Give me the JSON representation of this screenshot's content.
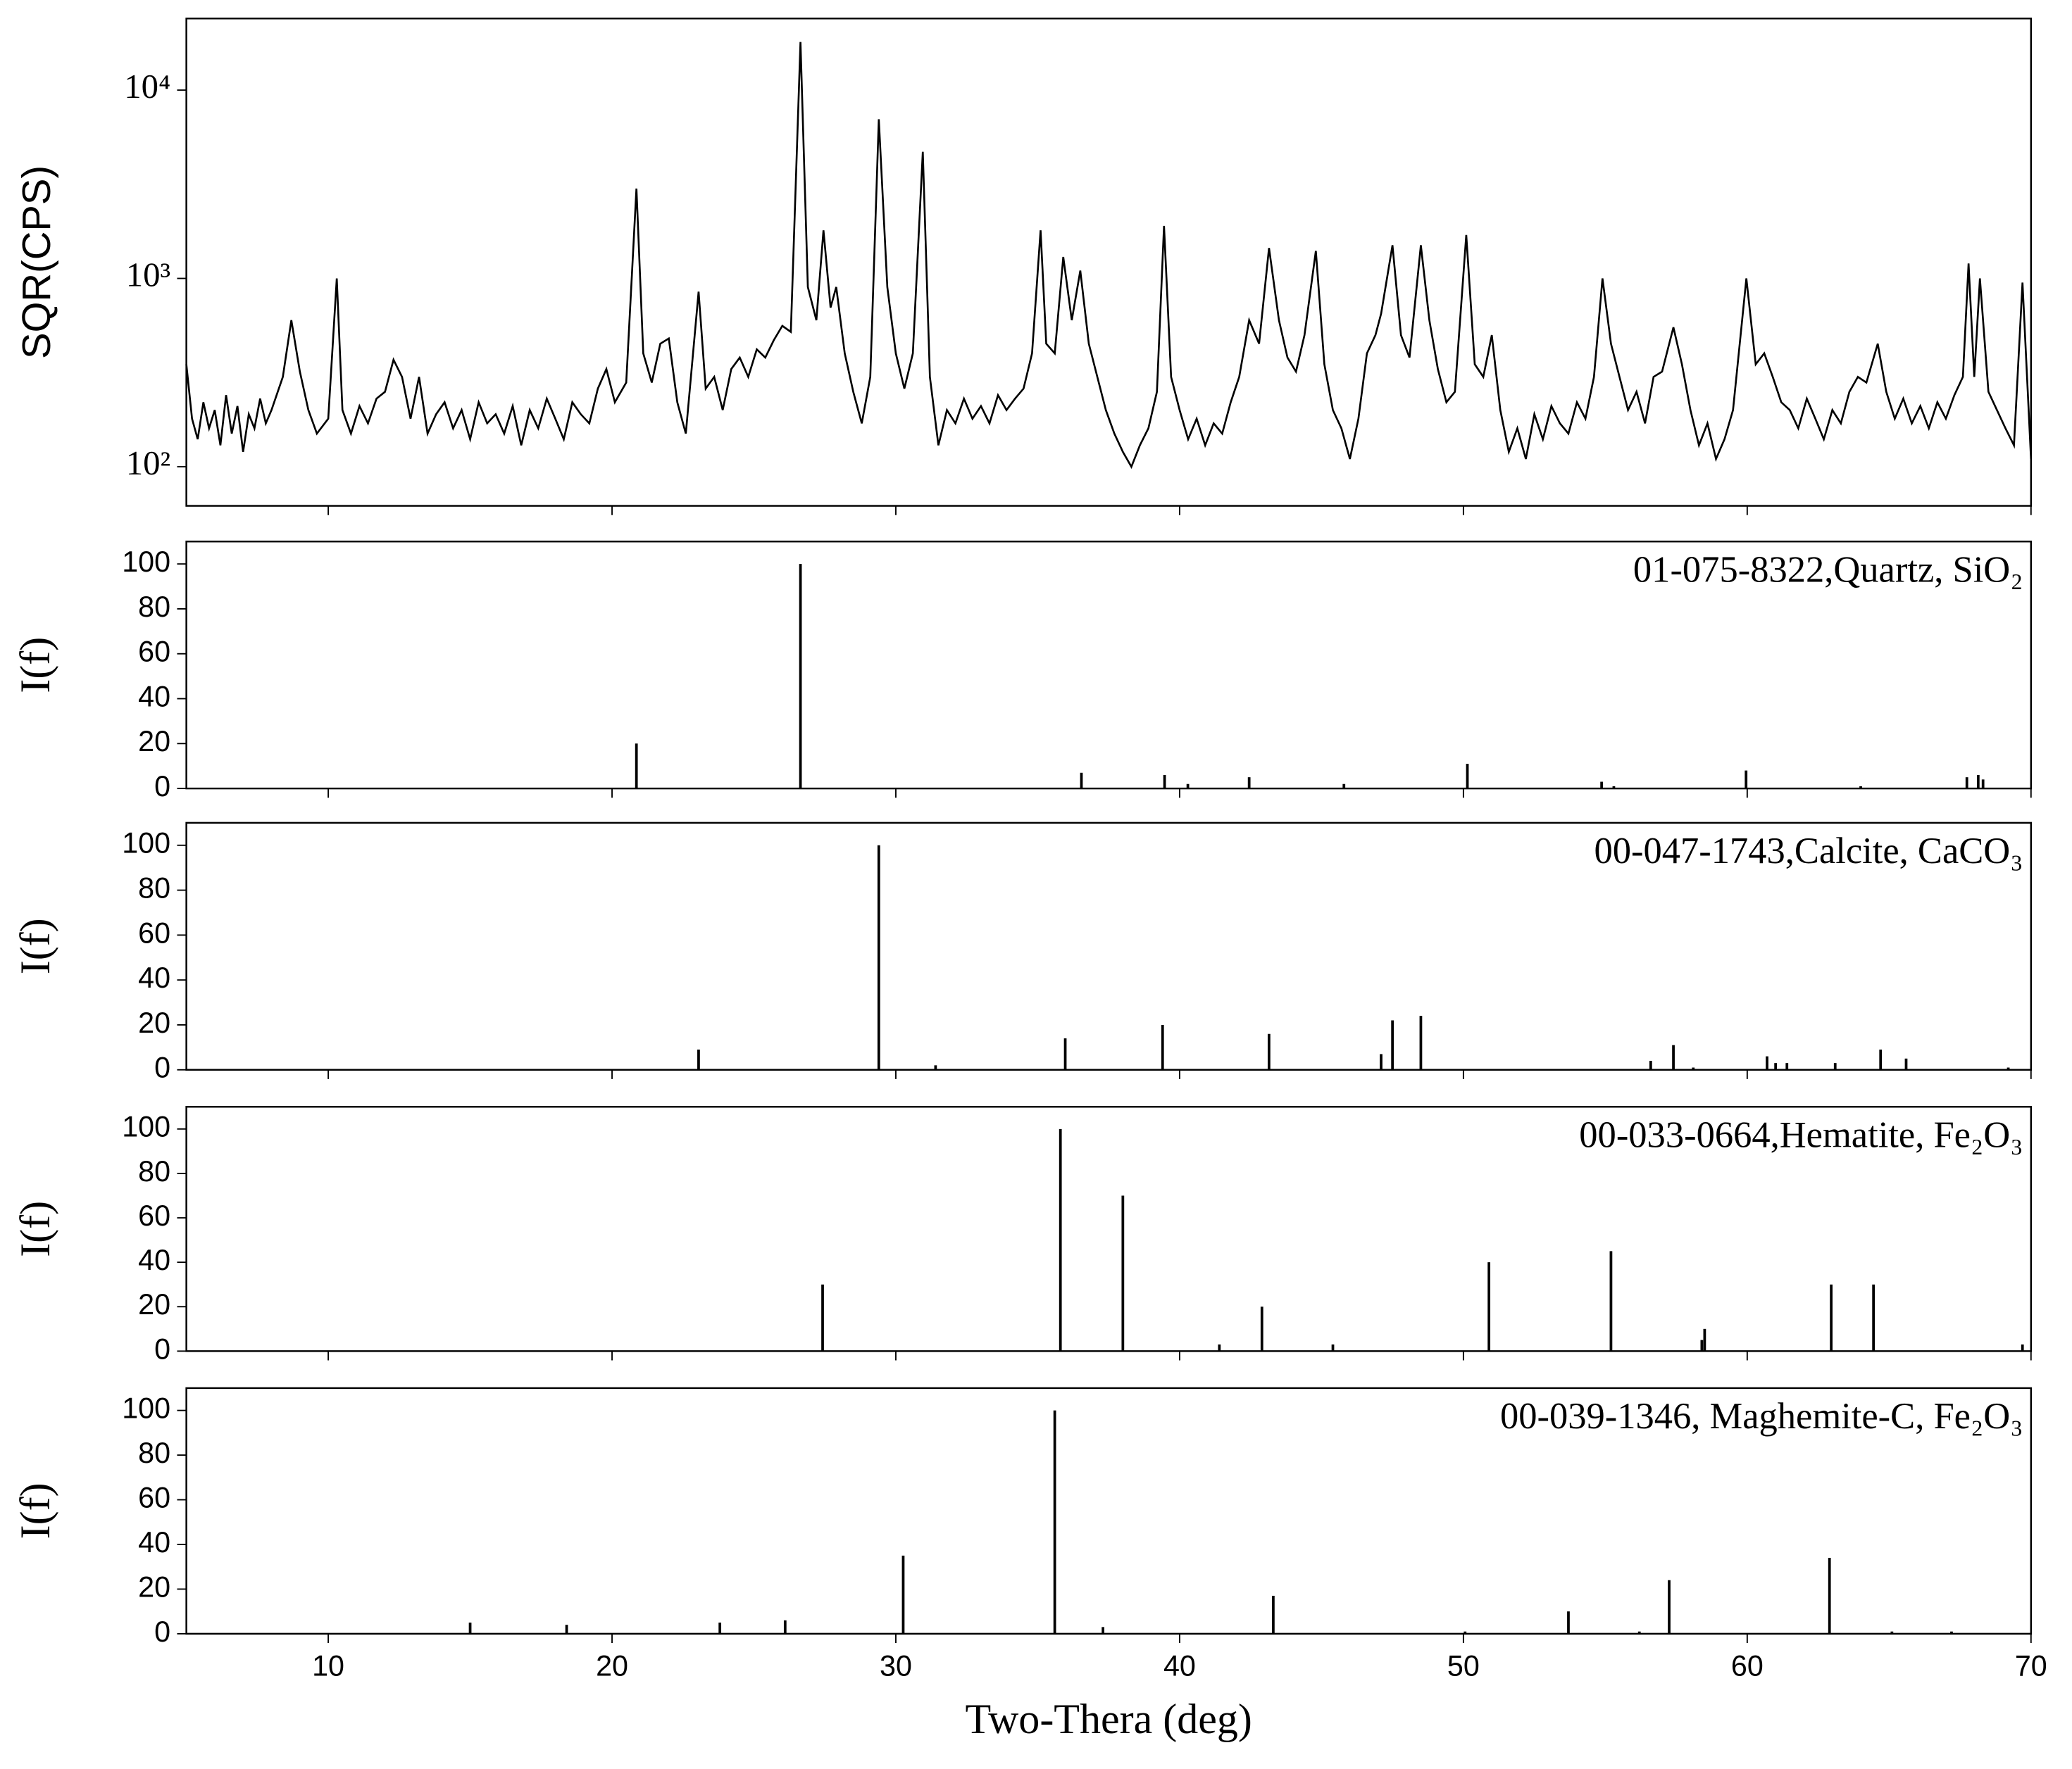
{
  "chart_data": [
    {
      "type": "line",
      "ylabel": "SQR(CPS)",
      "log_scale": true,
      "color": "#000000",
      "xlim": [
        5,
        70
      ],
      "xticks": [
        10,
        20,
        30,
        40,
        50,
        60,
        70
      ],
      "ylim": [
        62,
        24000
      ],
      "yticks": [
        {
          "value": 100,
          "label": "10²"
        },
        {
          "value": 1000,
          "label": "10³"
        },
        {
          "value": 10000,
          "label": "10⁴"
        }
      ],
      "x": [
        5,
        5.2,
        5.4,
        5.6,
        5.8,
        6,
        6.2,
        6.4,
        6.6,
        6.8,
        7,
        7.2,
        7.4,
        7.6,
        7.8,
        8,
        8.4,
        8.7,
        9.0,
        9.3,
        9.6,
        10.0,
        10.3,
        10.5,
        10.8,
        11.1,
        11.4,
        11.7,
        12.0,
        12.3,
        12.6,
        12.9,
        13.2,
        13.5,
        13.8,
        14.1,
        14.4,
        14.7,
        15.0,
        15.3,
        15.6,
        15.9,
        16.2,
        16.5,
        16.8,
        17.1,
        17.4,
        17.7,
        18.0,
        18.3,
        18.6,
        18.9,
        19.2,
        19.5,
        19.8,
        20.1,
        20.5,
        20.86,
        21.1,
        21.4,
        21.7,
        22.0,
        22.3,
        22.6,
        23.05,
        23.3,
        23.6,
        23.9,
        24.2,
        24.5,
        24.8,
        25.1,
        25.4,
        25.7,
        26.0,
        26.3,
        26.64,
        26.9,
        27.2,
        27.45,
        27.7,
        27.9,
        28.2,
        28.5,
        28.8,
        29.1,
        29.4,
        29.7,
        30.0,
        30.3,
        30.6,
        30.95,
        31.2,
        31.5,
        31.8,
        32.1,
        32.4,
        32.7,
        33.0,
        33.3,
        33.6,
        33.9,
        34.2,
        34.5,
        34.8,
        35.1,
        35.3,
        35.6,
        35.9,
        36.2,
        36.5,
        36.8,
        37.1,
        37.4,
        37.7,
        38.0,
        38.3,
        38.6,
        38.9,
        39.2,
        39.45,
        39.7,
        40.0,
        40.3,
        40.6,
        40.9,
        41.2,
        41.5,
        41.8,
        42.1,
        42.45,
        42.8,
        43.15,
        43.5,
        43.8,
        44.1,
        44.4,
        44.8,
        45.1,
        45.4,
        45.7,
        46.0,
        46.3,
        46.6,
        46.9,
        47.1,
        47.5,
        47.8,
        48.1,
        48.5,
        48.8,
        49.1,
        49.4,
        49.7,
        50.1,
        50.4,
        50.7,
        51.0,
        51.3,
        51.6,
        51.9,
        52.2,
        52.5,
        52.8,
        53.1,
        53.4,
        53.7,
        54.0,
        54.3,
        54.6,
        54.9,
        55.2,
        55.5,
        55.8,
        56.1,
        56.4,
        56.7,
        57.0,
        57.4,
        57.7,
        58.0,
        58.3,
        58.6,
        58.9,
        59.2,
        59.5,
        59.97,
        60.3,
        60.6,
        60.9,
        61.2,
        61.5,
        61.8,
        62.1,
        62.4,
        62.7,
        63.0,
        63.3,
        63.6,
        63.9,
        64.2,
        64.6,
        64.9,
        65.2,
        65.5,
        65.8,
        66.1,
        66.4,
        66.7,
        67.0,
        67.3,
        67.6,
        67.8,
        68.0,
        68.2,
        68.5,
        68.8,
        69.1,
        69.4,
        69.7,
        70.0
      ],
      "values": [
        350,
        180,
        140,
        220,
        160,
        200,
        130,
        240,
        150,
        210,
        120,
        190,
        160,
        230,
        170,
        200,
        300,
        600,
        320,
        200,
        150,
        180,
        1000,
        200,
        150,
        210,
        170,
        230,
        250,
        370,
        300,
        180,
        300,
        150,
        190,
        220,
        160,
        200,
        140,
        220,
        170,
        190,
        150,
        210,
        130,
        200,
        160,
        230,
        180,
        140,
        220,
        190,
        170,
        260,
        330,
        220,
        280,
        3000,
        400,
        280,
        450,
        480,
        220,
        150,
        850,
        260,
        300,
        200,
        330,
        380,
        300,
        420,
        380,
        470,
        560,
        520,
        18000,
        900,
        600,
        1800,
        700,
        900,
        400,
        250,
        170,
        300,
        7000,
        900,
        400,
        260,
        400,
        4700,
        300,
        130,
        200,
        170,
        230,
        180,
        210,
        170,
        240,
        200,
        230,
        260,
        400,
        1800,
        450,
        400,
        1300,
        600,
        1100,
        450,
        300,
        200,
        150,
        120,
        100,
        130,
        160,
        250,
        1900,
        300,
        200,
        140,
        180,
        130,
        170,
        150,
        220,
        300,
        600,
        450,
        1450,
        600,
        380,
        320,
        500,
        1400,
        350,
        200,
        160,
        110,
        180,
        400,
        500,
        650,
        1500,
        500,
        380,
        1500,
        600,
        330,
        220,
        250,
        1700,
        350,
        300,
        500,
        200,
        120,
        160,
        110,
        190,
        140,
        210,
        170,
        150,
        220,
        180,
        300,
        1000,
        450,
        300,
        200,
        250,
        170,
        300,
        320,
        550,
        350,
        200,
        130,
        170,
        110,
        140,
        200,
        1000,
        350,
        400,
        300,
        220,
        200,
        160,
        230,
        180,
        140,
        200,
        170,
        250,
        300,
        280,
        450,
        250,
        180,
        230,
        170,
        210,
        160,
        220,
        180,
        240,
        300,
        1200,
        300,
        1000,
        250,
        200,
        160,
        130,
        950,
        110
      ]
    },
    {
      "type": "stem",
      "ylabel": "I(f)",
      "label": "01-075-8322,Quartz, SiO₂",
      "color": "#000000",
      "xlim": [
        5,
        70
      ],
      "xticks": [
        10,
        20,
        30,
        40,
        50,
        60,
        70
      ],
      "ylim": [
        0,
        110
      ],
      "yticks": [
        0,
        20,
        40,
        60,
        80,
        100
      ],
      "x": [
        20.86,
        26.64,
        36.54,
        39.47,
        40.29,
        42.45,
        45.79,
        50.14,
        54.87,
        55.3,
        59.96,
        64.0,
        67.74,
        68.14,
        68.31
      ],
      "values": [
        20,
        100,
        7,
        6,
        2,
        5,
        2,
        11,
        3,
        1,
        8,
        1,
        5,
        6,
        4
      ]
    },
    {
      "type": "stem",
      "ylabel": "I(f)",
      "label": "00-047-1743,Calcite, CaCO₃",
      "color": "#000000",
      "xlim": [
        5,
        70
      ],
      "xticks": [
        10,
        20,
        30,
        40,
        50,
        60,
        70
      ],
      "ylim": [
        0,
        110
      ],
      "yticks": [
        0,
        20,
        40,
        60,
        80,
        100
      ],
      "x": [
        23.05,
        29.4,
        31.4,
        35.97,
        39.4,
        43.15,
        47.1,
        47.5,
        48.5,
        56.6,
        57.4,
        58.1,
        60.7,
        61.0,
        61.4,
        63.1,
        64.7,
        65.6,
        69.2
      ],
      "values": [
        9,
        100,
        2,
        14,
        20,
        16,
        7,
        22,
        24,
        4,
        11,
        1,
        6,
        3,
        3,
        3,
        9,
        5,
        1
      ]
    },
    {
      "type": "stem",
      "ylabel": "I(f)",
      "label": "00-033-0664,Hematite, Fe₂O₃",
      "color": "#000000",
      "xlim": [
        5,
        70
      ],
      "xticks": [
        10,
        20,
        30,
        40,
        50,
        60,
        70
      ],
      "ylim": [
        0,
        110
      ],
      "yticks": [
        0,
        20,
        40,
        60,
        80,
        100
      ],
      "x": [
        27.42,
        35.8,
        38.0,
        41.4,
        42.9,
        45.4,
        50.9,
        55.2,
        58.4,
        58.5,
        62.96,
        64.45,
        69.7
      ],
      "values": [
        30,
        100,
        70,
        3,
        20,
        3,
        40,
        45,
        5,
        10,
        30,
        30,
        3
      ]
    },
    {
      "type": "stem",
      "ylabel": "I(f)",
      "label": "00-039-1346, Maghemite-C, Fe₂O₃",
      "xlabel": "Two-Thera (deg)",
      "color": "#000000",
      "xlim": [
        5,
        70
      ],
      "xticks": [
        10,
        20,
        30,
        40,
        50,
        60,
        70
      ],
      "ylim": [
        0,
        110
      ],
      "yticks": [
        0,
        20,
        40,
        60,
        80,
        100
      ],
      "x": [
        15.0,
        18.4,
        23.8,
        26.1,
        30.26,
        35.6,
        37.3,
        43.3,
        50.06,
        53.7,
        56.2,
        57.25,
        62.9,
        65.1,
        67.2
      ],
      "values": [
        5,
        4,
        5,
        6,
        35,
        100,
        3,
        17,
        1,
        10,
        1,
        24,
        34,
        1,
        1
      ]
    }
  ]
}
